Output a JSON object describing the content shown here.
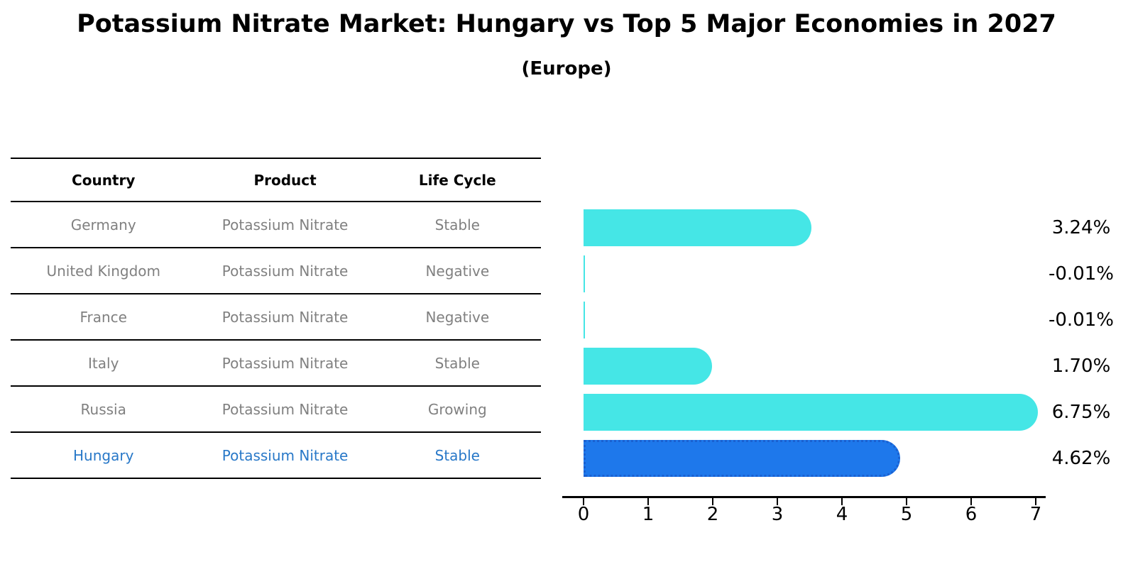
{
  "title": "Potassium Nitrate Market: Hungary vs Top 5 Major Economies in 2027",
  "subtitle": "(Europe)",
  "table": {
    "headers": [
      "Country",
      "Product",
      "Life Cycle"
    ],
    "rows": [
      {
        "country": "Germany",
        "product": "Potassium Nitrate",
        "life_cycle": "Stable",
        "highlighted": false
      },
      {
        "country": "United Kingdom",
        "product": "Potassium Nitrate",
        "life_cycle": "Negative",
        "highlighted": false
      },
      {
        "country": "France",
        "product": "Potassium Nitrate",
        "life_cycle": "Negative",
        "highlighted": false
      },
      {
        "country": "Italy",
        "product": "Potassium Nitrate",
        "life_cycle": "Stable",
        "highlighted": false
      },
      {
        "country": "Russia",
        "product": "Potassium Nitrate",
        "life_cycle": "Growing",
        "highlighted": false
      },
      {
        "country": "Hungary",
        "product": "Potassium Nitrate",
        "life_cycle": "Stable",
        "highlighted": true
      }
    ]
  },
  "chart_data": {
    "type": "bar",
    "orientation": "horizontal",
    "title": "Potassium Nitrate Market: Hungary vs Top 5 Major Economies in 2027 (Europe)",
    "categories": [
      "Germany",
      "United Kingdom",
      "France",
      "Italy",
      "Russia",
      "Hungary"
    ],
    "values": [
      3.24,
      -0.01,
      -0.01,
      1.7,
      6.75,
      4.62
    ],
    "value_labels": [
      "3.24%",
      "-0.01%",
      "-0.01%",
      "1.70%",
      "6.75%",
      "4.62%"
    ],
    "xlim": [
      0,
      7
    ],
    "xticks": [
      "0",
      "1",
      "2",
      "3",
      "4",
      "5",
      "6",
      "7"
    ],
    "highlight_index": 5,
    "grid": false,
    "legend": false
  },
  "colors": {
    "bar": "#45E6E6",
    "highlight_bar": "#1E78EB",
    "highlight_border": "#1A60D0",
    "highlight_text": "#2878C8",
    "table_text": "#808080",
    "header_text": "#000000",
    "axis": "#000000"
  }
}
